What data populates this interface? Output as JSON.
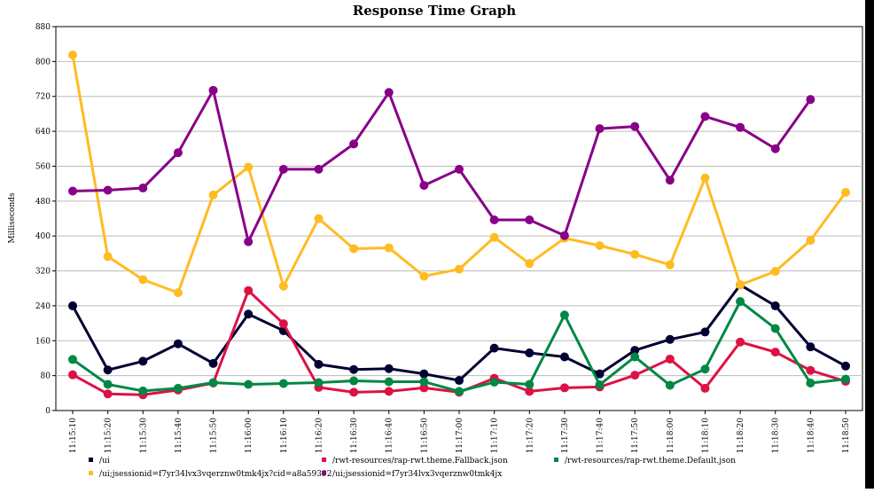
{
  "chart_data": {
    "type": "line",
    "title": "Response Time Graph",
    "xlabel": "",
    "ylabel": "Milliseconds",
    "ylim": [
      0,
      880
    ],
    "yticks": [
      0,
      80,
      160,
      240,
      320,
      400,
      480,
      560,
      640,
      720,
      800,
      880
    ],
    "grid": true,
    "legend_position": "bottom",
    "categories": [
      "11:15:10",
      "11:15:20",
      "11:15:30",
      "11:15:40",
      "11:15:50",
      "11:16:00",
      "11:16:10",
      "11:16:20",
      "11:16:30",
      "11:16:40",
      "11:16:50",
      "11:17:00",
      "11:17:10",
      "11:17:20",
      "11:17:30",
      "11:17:40",
      "11:17:50",
      "11:18:00",
      "11:18:10",
      "11:18:20",
      "11:18:30",
      "11:18:40",
      "11:18:50"
    ],
    "series": [
      {
        "name": "/ui",
        "color": "#000033",
        "values": [
          240,
          93,
          113,
          153,
          108,
          221,
          183,
          106,
          94,
          96,
          84,
          69,
          143,
          132,
          123,
          84,
          138,
          163,
          180,
          288,
          240,
          146,
          102
        ]
      },
      {
        "name": "/rwt-resources/rap-rwt.theme.Fallback.json",
        "color": "#dd1144",
        "values": [
          82,
          38,
          36,
          47,
          63,
          275,
          199,
          53,
          42,
          44,
          52,
          42,
          74,
          44,
          52,
          54,
          81,
          118,
          51,
          157,
          134,
          92,
          67
        ]
      },
      {
        "name": "/rwt-resources/rap-rwt.theme.Default.json",
        "color": "#008844",
        "values": [
          117,
          60,
          45,
          51,
          64,
          60,
          62,
          64,
          68,
          66,
          66,
          44,
          65,
          60,
          219,
          59,
          123,
          58,
          95,
          250,
          188,
          63,
          72
        ]
      },
      {
        "name": "/ui;jsessionid=f7yr34lvx3vqerznw0tmk4jx?cid=a8a59392",
        "color": "#ffbb22",
        "values": [
          815,
          353,
          300,
          270,
          494,
          558,
          285,
          440,
          371,
          373,
          308,
          324,
          397,
          337,
          395,
          378,
          358,
          334,
          533,
          288,
          319,
          390,
          500
        ]
      },
      {
        "name": "/ui;jsessionid=f7yr34lvx3vqerznw0tmk4jx",
        "color": "#880088",
        "values": [
          503,
          505,
          510,
          591,
          734,
          387,
          553,
          553,
          611,
          729,
          516,
          553,
          437,
          437,
          401,
          646,
          651,
          528,
          674,
          649,
          600,
          713,
          null
        ]
      }
    ]
  }
}
